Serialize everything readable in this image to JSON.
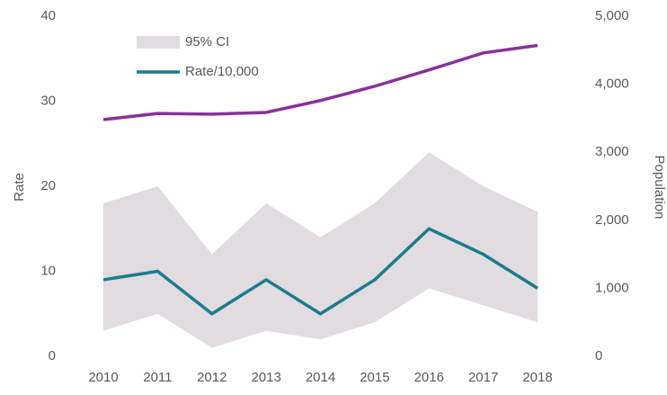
{
  "chart_data": {
    "type": "line",
    "categories": [
      "2010",
      "2011",
      "2012",
      "2013",
      "2014",
      "2015",
      "2016",
      "2017",
      "2018"
    ],
    "y_label": "Rate",
    "y2_label": "Population",
    "ylim": [
      0,
      40
    ],
    "yticks": [
      0,
      10,
      20,
      30,
      40
    ],
    "y2lim": [
      0,
      5000
    ],
    "y2ticks": [
      0,
      {
        "value": 1000,
        "label": "1,000"
      },
      {
        "value": 2000,
        "label": "2,000"
      },
      {
        "value": 3000,
        "label": "3,000"
      },
      {
        "value": 4000,
        "label": "4,000"
      },
      {
        "value": 5000,
        "label": "5,000"
      }
    ],
    "ci": {
      "name": "95% CI",
      "color": "#e0dce0",
      "upper": [
        18,
        20,
        12,
        18,
        14,
        18,
        24,
        20,
        17
      ],
      "lower": [
        3,
        5,
        1,
        3,
        2,
        4,
        8,
        6,
        4
      ]
    },
    "series": [
      {
        "name": "Rate/10,000",
        "color": "#1b7c8c",
        "values": [
          9,
          10,
          5,
          9,
          5,
          9,
          15,
          12,
          8
        ]
      },
      {
        "color": "#8a2f9e",
        "axis": "y2",
        "values": [
          3480,
          3570,
          3560,
          3585,
          3760,
          3970,
          4210,
          4460,
          4570
        ]
      }
    ],
    "legend": "upper left"
  }
}
